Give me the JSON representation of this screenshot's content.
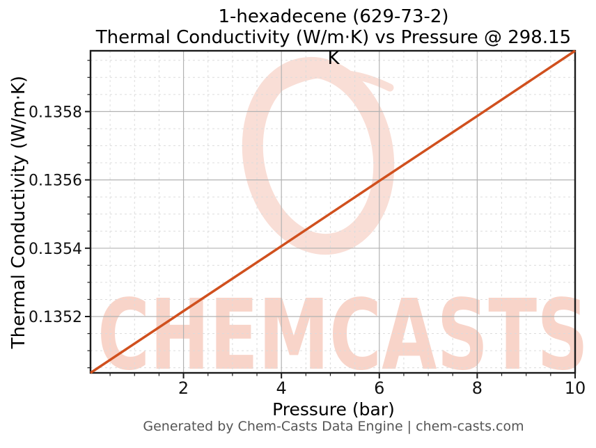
{
  "page": {
    "background": "#ffffff"
  },
  "chart": {
    "title_line1": "1-hexadecene (629-73-2)",
    "title_line2": "Thermal Conductivity (W/m·K) vs Pressure @ 298.15 K",
    "xlabel": "Pressure (bar)",
    "ylabel": "Thermal Conductivity (W/m·K)",
    "footer": "Generated by Chem-Casts Data Engine | chem-casts.com",
    "watermark_text": "CHEMCASTS"
  },
  "chart_data": {
    "type": "line",
    "title": "1-hexadecene (629-73-2)",
    "subtitle": "Thermal Conductivity (W/m·K) vs Pressure @ 298.15 K",
    "substance": "1-hexadecene",
    "cas_number": "629-73-2",
    "temperature_K": 298.15,
    "xlabel": "Pressure (bar)",
    "ylabel": "Thermal Conductivity (W/m·K)",
    "x": [
      0.1,
      2,
      4,
      6,
      8,
      10
    ],
    "y": [
      0.135035,
      0.135216,
      0.135406,
      0.135597,
      0.135787,
      0.135978
    ],
    "xlim": [
      0.1,
      10
    ],
    "ylim": [
      0.135035,
      0.135978
    ],
    "x_ticks": [
      2,
      4,
      6,
      8,
      10
    ],
    "x_tick_labels": [
      "2",
      "4",
      "6",
      "8",
      "10"
    ],
    "y_ticks": [
      0.1352,
      0.1354,
      0.1356,
      0.1358
    ],
    "y_tick_labels": [
      "0.1352",
      "0.1354",
      "0.1356",
      "0.1358"
    ],
    "x_minor_ticks": [
      0.5,
      1,
      1.5,
      2.5,
      3,
      3.5,
      4.5,
      5,
      5.5,
      6.5,
      7,
      7.5,
      8.5,
      9,
      9.5
    ],
    "y_minor_ticks": [
      0.13505,
      0.1351,
      0.13515,
      0.13525,
      0.1353,
      0.13535,
      0.13545,
      0.1355,
      0.13555,
      0.13565,
      0.1357,
      0.13575,
      0.13585,
      0.1359,
      0.13595
    ],
    "grid": {
      "major": true,
      "minor": true
    },
    "legend": null,
    "style": {
      "line_color": "#d0501e",
      "line_width": 3.5,
      "grid_major_color": "#b2b2b2",
      "grid_minor_color": "#dcdcdc",
      "spine_color": "#1b1b1b",
      "watermark_text_color": "#f8d4c9",
      "watermark_ring_color": "#f9ded6",
      "footer_color": "#555555"
    }
  }
}
